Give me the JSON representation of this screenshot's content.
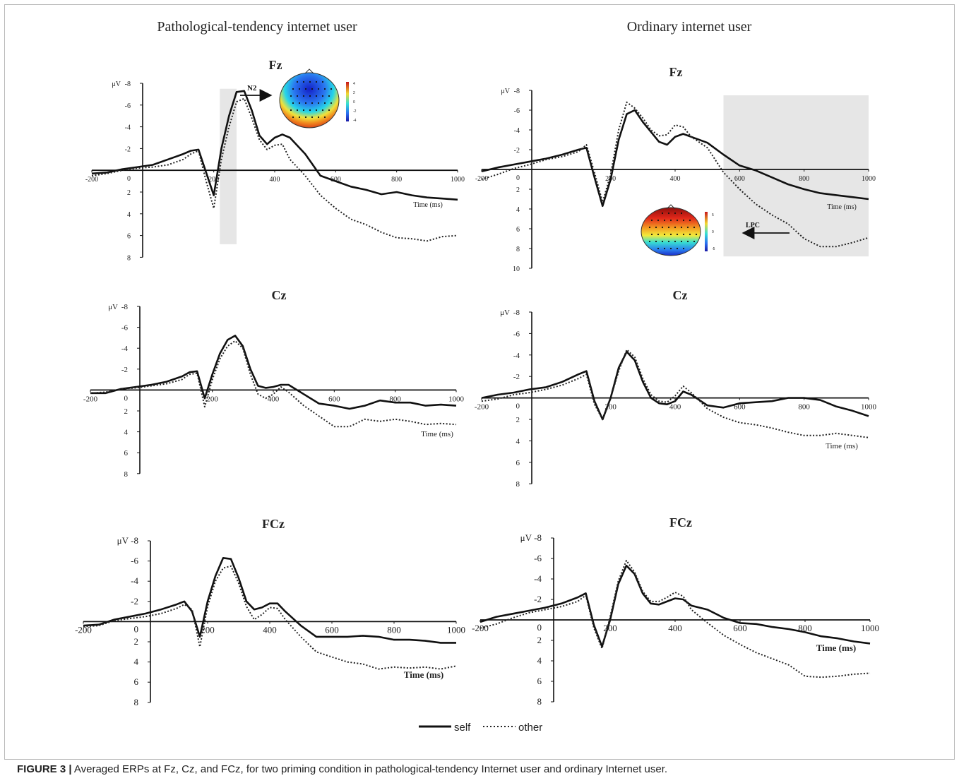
{
  "figure": {
    "group_titles": [
      "Pathological-tendency internet user",
      "Ordinary internet user"
    ],
    "legend": {
      "self": "self",
      "other": "other"
    },
    "unit": "μV",
    "time_label": "Time (ms)",
    "annotations": {
      "n2": "N2",
      "lpc": "LPC"
    },
    "topo_scales": {
      "n2": [
        "4",
        "2",
        "0",
        "-2",
        "-4"
      ],
      "lpc": [
        "5",
        "0",
        "-5"
      ]
    }
  },
  "caption": {
    "label": "FIGURE 3 |",
    "text": " Averaged ERPs at Fz, Cz, and FCz, for two priming condition in pathological-tendency Internet user and ordinary Internet user."
  },
  "colors": {
    "self": "#111111",
    "other": "#222222",
    "highlight": "#e6e6e6"
  },
  "chart_data": [
    {
      "type": "line",
      "group": "Pathological-tendency internet user",
      "title": "Fz",
      "x": [
        -200,
        -150,
        -100,
        -50,
        0,
        50,
        100,
        125,
        150,
        175,
        200,
        225,
        250,
        275,
        300,
        325,
        350,
        375,
        400,
        425,
        450,
        500,
        550,
        600,
        650,
        700,
        750,
        800,
        850,
        900,
        950,
        1000
      ],
      "series": [
        {
          "name": "self",
          "values": [
            0.3,
            0.2,
            -0.1,
            -0.3,
            -0.5,
            -1.0,
            -1.5,
            -1.8,
            -1.9,
            0.2,
            2.3,
            -2,
            -5,
            -7.2,
            -7.3,
            -5.5,
            -3.2,
            -2.4,
            -3,
            -3.3,
            -3.0,
            -1.5,
            0.5,
            1.0,
            1.5,
            1.8,
            2.2,
            2.0,
            2.3,
            2.5,
            2.6,
            2.7
          ]
        },
        {
          "name": "other",
          "values": [
            0.5,
            0.3,
            0.0,
            -0.2,
            -0.3,
            -0.5,
            -1.0,
            -1.5,
            -1.8,
            1.0,
            3.5,
            -1,
            -4,
            -6.3,
            -6.6,
            -4.8,
            -2.8,
            -1.9,
            -2.3,
            -2.4,
            -1.0,
            0.5,
            2.3,
            3.5,
            4.5,
            5.0,
            5.7,
            6.2,
            6.3,
            6.5,
            6.1,
            6.0
          ]
        }
      ],
      "xlim": [
        -200,
        1000
      ],
      "ylim": [
        -8,
        8
      ],
      "y_inverted": true,
      "xticks": [
        -200,
        0,
        200,
        400,
        600,
        800,
        1000
      ],
      "yticks": [
        -8,
        -6,
        -4,
        -2,
        0,
        2,
        4,
        6,
        8
      ],
      "highlight_ms": [
        220,
        275
      ]
    },
    {
      "type": "line",
      "group": "Ordinary internet user",
      "title": "Fz",
      "x": [
        -200,
        -150,
        -100,
        -50,
        0,
        50,
        100,
        125,
        150,
        175,
        200,
        225,
        250,
        275,
        300,
        325,
        350,
        375,
        400,
        425,
        450,
        500,
        550,
        600,
        650,
        700,
        750,
        800,
        850,
        900,
        950,
        1000
      ],
      "series": [
        {
          "name": "self",
          "values": [
            0.2,
            -0.2,
            -0.5,
            -0.8,
            -1.1,
            -1.5,
            -2.0,
            -2.2,
            0.8,
            3.7,
            1.0,
            -3,
            -5.6,
            -6.0,
            -4.8,
            -3.8,
            -2.8,
            -2.5,
            -3.3,
            -3.6,
            -3.3,
            -2.7,
            -1.5,
            -0.4,
            0.1,
            0.8,
            1.5,
            2.0,
            2.4,
            2.6,
            2.8,
            3.0
          ]
        },
        {
          "name": "other",
          "values": [
            1.0,
            0.5,
            -0.1,
            -0.5,
            -1.0,
            -1.3,
            -1.8,
            -2.5,
            0.3,
            3.3,
            0.5,
            -4,
            -6.8,
            -6.2,
            -5.2,
            -4.0,
            -3.4,
            -3.5,
            -4.5,
            -4.3,
            -3.3,
            -2.2,
            0.3,
            2.0,
            3.5,
            4.6,
            5.5,
            7.0,
            7.8,
            7.8,
            7.4,
            6.9
          ]
        }
      ],
      "xlim": [
        -200,
        1000
      ],
      "ylim": [
        -8,
        10
      ],
      "y_inverted": true,
      "xticks": [
        -200,
        0,
        200,
        400,
        600,
        800,
        1000
      ],
      "yticks": [
        -8,
        -6,
        -4,
        -2,
        0,
        2,
        4,
        6,
        8,
        10
      ],
      "highlight_ms": [
        550,
        1000
      ]
    },
    {
      "type": "line",
      "group": "Pathological-tendency internet user",
      "title": "Cz",
      "x": [
        -200,
        -150,
        -100,
        -50,
        0,
        50,
        100,
        125,
        150,
        175,
        200,
        225,
        250,
        275,
        300,
        325,
        350,
        375,
        400,
        425,
        450,
        500,
        550,
        600,
        650,
        700,
        750,
        800,
        850,
        900,
        950,
        1000
      ],
      "series": [
        {
          "name": "self",
          "values": [
            0.3,
            0.3,
            -0.1,
            -0.3,
            -0.5,
            -0.8,
            -1.3,
            -1.7,
            -1.8,
            0.8,
            -1.5,
            -3.5,
            -4.8,
            -5.2,
            -4.2,
            -2.0,
            -0.4,
            -0.2,
            -0.3,
            -0.5,
            -0.5,
            0.4,
            1.3,
            1.5,
            1.8,
            1.5,
            1.0,
            1.2,
            1.2,
            1.5,
            1.4,
            1.5
          ]
        },
        {
          "name": "other",
          "values": [
            0.3,
            0.2,
            -0.1,
            -0.2,
            -0.4,
            -0.6,
            -1.0,
            -1.5,
            -1.6,
            1.6,
            -1.0,
            -3.0,
            -4.2,
            -4.7,
            -4.0,
            -1.5,
            0.4,
            0.8,
            0.4,
            -0.3,
            0.2,
            1.5,
            2.5,
            3.5,
            3.5,
            2.8,
            3.0,
            2.8,
            3.0,
            3.3,
            3.2,
            3.3
          ]
        }
      ],
      "xlim": [
        -200,
        1000
      ],
      "ylim": [
        -8,
        8
      ],
      "y_inverted": true,
      "xticks": [
        -200,
        0,
        200,
        400,
        600,
        800,
        1000
      ],
      "yticks": [
        -8,
        -6,
        -4,
        -2,
        0,
        2,
        4,
        6,
        8
      ]
    },
    {
      "type": "line",
      "group": "Ordinary internet user",
      "title": "Cz",
      "x": [
        -200,
        -150,
        -100,
        -50,
        0,
        50,
        100,
        125,
        150,
        175,
        200,
        225,
        250,
        275,
        300,
        325,
        350,
        375,
        400,
        425,
        450,
        500,
        550,
        600,
        650,
        700,
        750,
        800,
        850,
        900,
        950,
        1000
      ],
      "series": [
        {
          "name": "self",
          "values": [
            0.0,
            -0.3,
            -0.5,
            -0.8,
            -1.0,
            -1.5,
            -2.2,
            -2.5,
            0.3,
            2.0,
            0.0,
            -2.8,
            -4.3,
            -3.5,
            -1.5,
            0.0,
            0.5,
            0.6,
            0.3,
            -0.6,
            -0.3,
            0.7,
            0.9,
            0.5,
            0.4,
            0.3,
            0.0,
            0.0,
            0.2,
            0.8,
            1.2,
            1.7
          ]
        },
        {
          "name": "other",
          "values": [
            0.3,
            0.1,
            -0.3,
            -0.5,
            -0.8,
            -1.2,
            -1.8,
            -2.2,
            0.6,
            2.0,
            0.0,
            -2.5,
            -4.5,
            -3.8,
            -1.8,
            -0.3,
            0.3,
            0.4,
            -0.2,
            -1.1,
            -0.5,
            1.0,
            1.8,
            2.3,
            2.5,
            2.8,
            3.2,
            3.5,
            3.5,
            3.3,
            3.5,
            3.7
          ]
        }
      ],
      "xlim": [
        -200,
        1000
      ],
      "ylim": [
        -8,
        8
      ],
      "y_inverted": true,
      "xticks": [
        -200,
        0,
        200,
        400,
        600,
        800,
        1000
      ],
      "yticks": [
        -8,
        -6,
        -4,
        -2,
        0,
        2,
        4,
        6,
        8
      ]
    },
    {
      "type": "line",
      "group": "Pathological-tendency internet user",
      "title": "FCz",
      "x": [
        -200,
        -150,
        -100,
        -50,
        0,
        50,
        100,
        125,
        150,
        175,
        200,
        225,
        250,
        275,
        300,
        325,
        350,
        375,
        400,
        425,
        450,
        500,
        550,
        600,
        650,
        700,
        750,
        800,
        850,
        900,
        950,
        1000
      ],
      "series": [
        {
          "name": "self",
          "values": [
            0.4,
            0.3,
            -0.2,
            -0.5,
            -0.8,
            -1.2,
            -1.7,
            -2.0,
            -1.0,
            1.5,
            -2.0,
            -4.5,
            -6.3,
            -6.2,
            -4.3,
            -2.0,
            -1.2,
            -1.4,
            -1.8,
            -1.8,
            -1.0,
            0.4,
            1.5,
            1.5,
            1.5,
            1.4,
            1.5,
            1.8,
            1.8,
            1.9,
            2.1,
            2.1
          ]
        },
        {
          "name": "other",
          "values": [
            0.5,
            0.4,
            -0.1,
            -0.3,
            -0.5,
            -0.8,
            -1.3,
            -1.7,
            -1.2,
            2.5,
            -1.5,
            -4.0,
            -5.3,
            -5.5,
            -3.8,
            -1.5,
            -0.2,
            -0.7,
            -1.4,
            -1.3,
            -0.2,
            1.5,
            3.0,
            3.5,
            4.0,
            4.2,
            4.7,
            4.5,
            4.6,
            4.5,
            4.7,
            4.4
          ]
        }
      ],
      "xlim": [
        -200,
        1000
      ],
      "ylim": [
        -8,
        8
      ],
      "y_inverted": true,
      "xticks": [
        -200,
        0,
        200,
        400,
        600,
        800,
        1000
      ],
      "yticks": [
        -8,
        -6,
        -4,
        -2,
        0,
        2,
        4,
        6,
        8
      ]
    },
    {
      "type": "line",
      "group": "Ordinary internet user",
      "title": "FCz",
      "x": [
        -200,
        -150,
        -100,
        -50,
        0,
        50,
        100,
        125,
        150,
        175,
        200,
        225,
        250,
        275,
        300,
        325,
        350,
        375,
        400,
        425,
        450,
        500,
        550,
        600,
        650,
        700,
        750,
        800,
        850,
        900,
        950,
        1000
      ],
      "series": [
        {
          "name": "self",
          "values": [
            0.2,
            -0.3,
            -0.6,
            -0.9,
            -1.2,
            -1.6,
            -2.2,
            -2.6,
            0.5,
            2.6,
            0.0,
            -3.5,
            -5.3,
            -4.5,
            -2.6,
            -1.6,
            -1.5,
            -1.8,
            -2.1,
            -2.0,
            -1.4,
            -1.0,
            -0.2,
            0.3,
            0.4,
            0.7,
            0.9,
            1.2,
            1.6,
            1.8,
            2.1,
            2.3
          ]
        },
        {
          "name": "other",
          "values": [
            0.8,
            0.4,
            -0.2,
            -0.7,
            -1.0,
            -1.3,
            -1.8,
            -2.4,
            0.8,
            2.8,
            -0.3,
            -3.8,
            -5.8,
            -4.7,
            -2.8,
            -1.8,
            -1.8,
            -2.2,
            -2.7,
            -2.3,
            -1.0,
            0.3,
            1.5,
            2.4,
            3.2,
            3.8,
            4.4,
            5.5,
            5.6,
            5.5,
            5.3,
            5.2
          ]
        }
      ],
      "xlim": [
        -200,
        1000
      ],
      "ylim": [
        -8,
        8
      ],
      "y_inverted": true,
      "xticks": [
        -200,
        0,
        200,
        400,
        600,
        800,
        1000
      ],
      "yticks": [
        -8,
        -6,
        -4,
        -2,
        0,
        2,
        4,
        6,
        8
      ]
    }
  ]
}
